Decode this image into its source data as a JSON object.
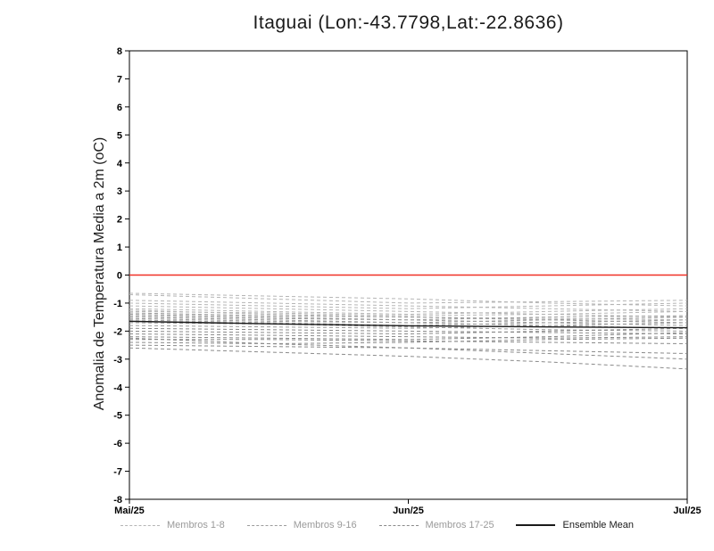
{
  "page": {
    "background": "#ffffff"
  },
  "chart_data": {
    "type": "line",
    "title": "Itaguai (Lon:-43.7798,Lat:-22.8636)",
    "ylabel": "Anomalia de Temperatura Media a 2m (oC)",
    "xlabel": "",
    "ylim": [
      -8,
      8
    ],
    "ytick_step": 1,
    "x_tick_labels": [
      "Mai/25",
      "Jun/25",
      "Jul/25"
    ],
    "x": [
      0,
      0.25,
      0.5,
      0.75,
      1
    ],
    "grid": false,
    "axis_color": "#000000",
    "zero_line": {
      "value": 0,
      "color": "#f03127"
    },
    "groups": {
      "g1": {
        "label": "Membros 1-8",
        "color": "#b5b5b5",
        "style": "dashed",
        "label_color": "#9a9a9a"
      },
      "g2": {
        "label": "Membros 9-16",
        "color": "#9c9c9c",
        "style": "dashed",
        "label_color": "#9a9a9a"
      },
      "g3": {
        "label": "Membros 17-25",
        "color": "#8a8a8a",
        "style": "dashed",
        "label_color": "#9a9a9a"
      },
      "mean": {
        "label": "Ensemble Mean",
        "color": "#1a1a1a",
        "style": "solid",
        "label_color": "#1a1a1a"
      }
    },
    "legend": [
      {
        "group": "g1"
      },
      {
        "group": "g2"
      },
      {
        "group": "g3"
      },
      {
        "group": "mean"
      }
    ],
    "series": [
      {
        "name": "Membro 1",
        "group": "g1",
        "values": [
          -0.65,
          -0.75,
          -0.85,
          -1.0,
          -1.1
        ]
      },
      {
        "name": "Membro 2",
        "group": "g1",
        "values": [
          -0.7,
          -0.85,
          -1.0,
          -0.95,
          -0.9
        ]
      },
      {
        "name": "Membro 3",
        "group": "g1",
        "values": [
          -0.9,
          -1.0,
          -1.1,
          -1.2,
          -1.3
        ]
      },
      {
        "name": "Membro 4",
        "group": "g1",
        "values": [
          -1.0,
          -1.1,
          -1.2,
          -1.1,
          -1.0
        ]
      },
      {
        "name": "Membro 5",
        "group": "g1",
        "values": [
          -1.1,
          -1.2,
          -1.3,
          -1.4,
          -1.5
        ]
      },
      {
        "name": "Membro 6",
        "group": "g1",
        "values": [
          -1.2,
          -1.3,
          -1.4,
          -1.3,
          -1.2
        ]
      },
      {
        "name": "Membro 7",
        "group": "g1",
        "values": [
          -1.25,
          -1.4,
          -1.5,
          -1.55,
          -1.6
        ]
      },
      {
        "name": "Membro 8",
        "group": "g1",
        "values": [
          -1.3,
          -1.35,
          -1.45,
          -1.4,
          -1.3
        ]
      },
      {
        "name": "Membro 9",
        "group": "g2",
        "values": [
          -1.35,
          -1.45,
          -1.5,
          -1.6,
          -1.7
        ]
      },
      {
        "name": "Membro 10",
        "group": "g2",
        "values": [
          -1.4,
          -1.5,
          -1.6,
          -1.5,
          -1.45
        ]
      },
      {
        "name": "Membro 11",
        "group": "g2",
        "values": [
          -1.45,
          -1.55,
          -1.6,
          -1.7,
          -1.8
        ]
      },
      {
        "name": "Membro 12",
        "group": "g2",
        "values": [
          -1.5,
          -1.6,
          -1.7,
          -1.6,
          -1.5
        ]
      },
      {
        "name": "Membro 13",
        "group": "g2",
        "values": [
          -1.55,
          -1.65,
          -1.7,
          -1.8,
          -1.9
        ]
      },
      {
        "name": "Membro 14",
        "group": "g2",
        "values": [
          -1.6,
          -1.7,
          -1.8,
          -1.7,
          -1.6
        ]
      },
      {
        "name": "Membro 15",
        "group": "g2",
        "values": [
          -1.7,
          -1.75,
          -1.85,
          -1.95,
          -2.0
        ]
      },
      {
        "name": "Membro 16",
        "group": "g2",
        "values": [
          -1.8,
          -1.85,
          -1.9,
          -1.8,
          -1.7
        ]
      },
      {
        "name": "Membro 17",
        "group": "g3",
        "values": [
          -1.9,
          -1.95,
          -2.0,
          -2.05,
          -2.1
        ]
      },
      {
        "name": "Membro 18",
        "group": "g3",
        "values": [
          -2.0,
          -2.05,
          -2.1,
          -2.0,
          -1.9
        ]
      },
      {
        "name": "Membro 19",
        "group": "g3",
        "values": [
          -2.1,
          -2.15,
          -2.2,
          -2.25,
          -2.2
        ]
      },
      {
        "name": "Membro 20",
        "group": "g3",
        "values": [
          -2.2,
          -2.25,
          -2.3,
          -2.2,
          -2.05
        ]
      },
      {
        "name": "Membro 21",
        "group": "g3",
        "values": [
          -2.3,
          -2.3,
          -2.35,
          -2.4,
          -2.45
        ]
      },
      {
        "name": "Membro 22",
        "group": "g3",
        "values": [
          -2.4,
          -2.45,
          -2.4,
          -2.3,
          -2.25
        ]
      },
      {
        "name": "Membro 23",
        "group": "g3",
        "values": [
          -2.5,
          -2.55,
          -2.6,
          -2.7,
          -2.8
        ]
      },
      {
        "name": "Membro 24",
        "group": "g3",
        "values": [
          -2.6,
          -2.75,
          -2.9,
          -3.1,
          -3.35
        ]
      },
      {
        "name": "Membro 25",
        "group": "g3",
        "values": [
          -2.25,
          -2.45,
          -2.6,
          -2.8,
          -3.0
        ]
      },
      {
        "name": "Ensemble Mean",
        "group": "mean",
        "values": [
          -1.65,
          -1.74,
          -1.81,
          -1.85,
          -1.88
        ]
      }
    ],
    "legend_position": "bottom"
  }
}
